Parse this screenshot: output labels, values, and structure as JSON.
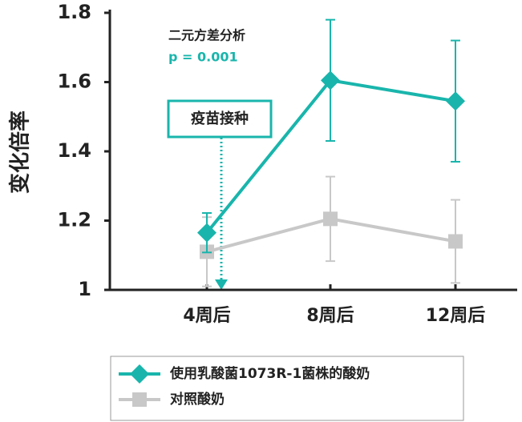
{
  "chart_data": {
    "type": "line",
    "ylabel": "变化倍率",
    "categories": [
      "4周后",
      "8周后",
      "12周后"
    ],
    "series": [
      {
        "name": "使用乳酸菌1073R-1菌株的酸奶",
        "color": "#19b5ac",
        "marker": "diamond",
        "values": [
          1.165,
          1.605,
          1.545
        ],
        "errors": [
          0.057,
          0.175,
          0.175
        ]
      },
      {
        "name": "对照酸奶",
        "color": "#c8c8c8",
        "marker": "square",
        "values": [
          1.11,
          1.205,
          1.14
        ],
        "errors": [
          0.1,
          0.122,
          0.12
        ]
      }
    ],
    "ylim": [
      1,
      1.8
    ],
    "yticks": [
      1,
      1.2,
      1.4,
      1.6,
      1.8
    ],
    "annotations": {
      "test": "二元方差分析",
      "p": "p = 0.001",
      "event": "疫苗接种"
    }
  }
}
